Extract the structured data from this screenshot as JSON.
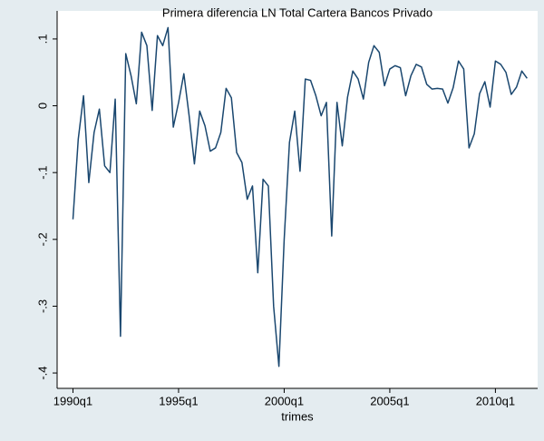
{
  "chart_data": {
    "type": "line",
    "title": "Primera diferencia LN Total Cartera Bancos Privado",
    "x_label": "trimes",
    "x": [
      "1990q1",
      "1990q2",
      "1990q3",
      "1990q4",
      "1991q1",
      "1991q2",
      "1991q3",
      "1991q4",
      "1992q1",
      "1992q2",
      "1992q3",
      "1992q4",
      "1993q1",
      "1993q2",
      "1993q3",
      "1993q4",
      "1994q1",
      "1994q2",
      "1994q3",
      "1994q4",
      "1995q1",
      "1995q2",
      "1995q3",
      "1995q4",
      "1996q1",
      "1996q2",
      "1996q3",
      "1996q4",
      "1997q1",
      "1997q2",
      "1997q3",
      "1997q4",
      "1998q1",
      "1998q2",
      "1998q3",
      "1998q4",
      "1999q1",
      "1999q2",
      "1999q3",
      "1999q4",
      "2000q1",
      "2000q2",
      "2000q3",
      "2000q4",
      "2001q1",
      "2001q2",
      "2001q3",
      "2001q4",
      "2002q1",
      "2002q2",
      "2002q3",
      "2002q4",
      "2003q1",
      "2003q2",
      "2003q3",
      "2003q4",
      "2004q1",
      "2004q2",
      "2004q3",
      "2004q4",
      "2005q1",
      "2005q2",
      "2005q3",
      "2005q4",
      "2006q1",
      "2006q2",
      "2006q3",
      "2006q4",
      "2007q1",
      "2007q2",
      "2007q3",
      "2007q4",
      "2008q1",
      "2008q2",
      "2008q3",
      "2008q4",
      "2009q1",
      "2009q2",
      "2009q3",
      "2009q4",
      "2010q1",
      "2010q2",
      "2010q3",
      "2010q4",
      "2011q1",
      "2011q2",
      "2011q3"
    ],
    "values": [
      -0.17,
      -0.05,
      0.015,
      -0.115,
      -0.04,
      -0.005,
      -0.09,
      -0.1,
      0.01,
      -0.345,
      0.078,
      0.045,
      0.003,
      0.11,
      0.09,
      -0.007,
      0.105,
      0.09,
      0.117,
      -0.032,
      0.005,
      0.048,
      -0.015,
      -0.087,
      -0.008,
      -0.03,
      -0.068,
      -0.063,
      -0.04,
      0.026,
      0.012,
      -0.07,
      -0.085,
      -0.14,
      -0.12,
      -0.25,
      -0.11,
      -0.12,
      -0.3,
      -0.39,
      -0.2,
      -0.055,
      -0.008,
      -0.098,
      0.04,
      0.038,
      0.015,
      -0.015,
      0.005,
      -0.195,
      0.005,
      -0.06,
      0.013,
      0.052,
      0.04,
      0.01,
      0.065,
      0.09,
      0.08,
      0.03,
      0.055,
      0.06,
      0.057,
      0.015,
      0.045,
      0.062,
      0.058,
      0.032,
      0.025,
      0.026,
      0.025,
      0.004,
      0.027,
      0.067,
      0.055,
      -0.063,
      -0.042,
      0.018,
      0.036,
      -0.002,
      0.067,
      0.062,
      0.05,
      0.017,
      0.028,
      0.052,
      0.041
    ],
    "color": "#1a476f",
    "xlim": [
      "1989q2",
      "2012q1"
    ],
    "xticks": [
      "1990q1",
      "1995q1",
      "2000q1",
      "2005q1",
      "2010q1"
    ],
    "ylim": [
      -0.423,
      0.142
    ],
    "yticks": [
      {
        "value": -0.4,
        "label": "-.4"
      },
      {
        "value": -0.3,
        "label": "-.3"
      },
      {
        "value": -0.2,
        "label": "-.2"
      },
      {
        "value": -0.1,
        "label": "-.1"
      },
      0,
      {
        "value": 0.1,
        "label": ".1"
      }
    ],
    "grid": false
  }
}
